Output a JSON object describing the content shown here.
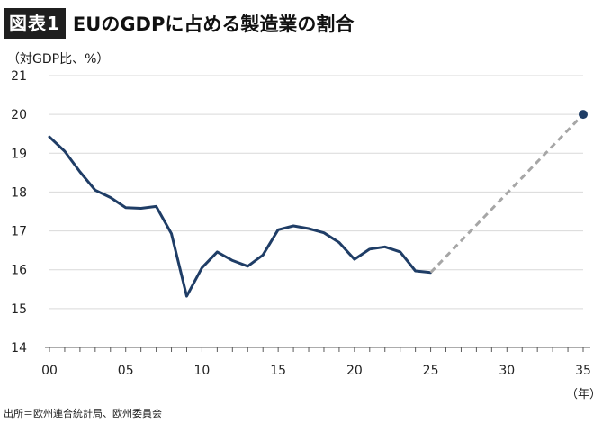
{
  "header": {
    "badge": "図表1",
    "title": "EUのGDPに占める製造業の割合"
  },
  "unit_label": "（対GDP比、%）",
  "x_unit_label": "（年）",
  "source": "出所＝欧州連合統計局、欧州委員会",
  "colors": {
    "line": "#1f3d66",
    "target_line": "#a6a6a6",
    "target_point": "#1f3d66",
    "grid": "#d9d9d9",
    "axis": "#595959"
  },
  "chart_data": {
    "type": "line",
    "xlim": [
      2000,
      2035
    ],
    "ylim": [
      14,
      21
    ],
    "yticks": [
      14,
      15,
      16,
      17,
      18,
      19,
      20,
      21
    ],
    "xticks": [
      {
        "value": 2000,
        "label": "00"
      },
      {
        "value": 2005,
        "label": "05"
      },
      {
        "value": 2010,
        "label": "10"
      },
      {
        "value": 2015,
        "label": "15"
      },
      {
        "value": 2020,
        "label": "20"
      },
      {
        "value": 2025,
        "label": "25"
      },
      {
        "value": 2030,
        "label": "30"
      },
      {
        "value": 2035,
        "label": "35"
      }
    ],
    "grid": "horizontal",
    "series": [
      {
        "style": "solid",
        "x": [
          2000,
          2001,
          2002,
          2003,
          2004,
          2005,
          2006,
          2007,
          2008,
          2009,
          2010,
          2011,
          2012,
          2013,
          2014,
          2015,
          2016,
          2017,
          2018,
          2019,
          2020,
          2021,
          2022,
          2023,
          2024,
          2025
        ],
        "y": [
          19.42,
          19.05,
          18.52,
          18.05,
          17.86,
          17.6,
          17.58,
          17.63,
          16.93,
          15.32,
          16.05,
          16.46,
          16.24,
          16.09,
          16.38,
          17.03,
          17.13,
          17.06,
          16.95,
          16.7,
          16.27,
          16.53,
          16.59,
          16.46,
          15.97,
          15.93
        ]
      },
      {
        "style": "dashed",
        "x": [
          2025,
          2035
        ],
        "y": [
          15.93,
          20.0
        ],
        "end_marker": true
      }
    ]
  }
}
